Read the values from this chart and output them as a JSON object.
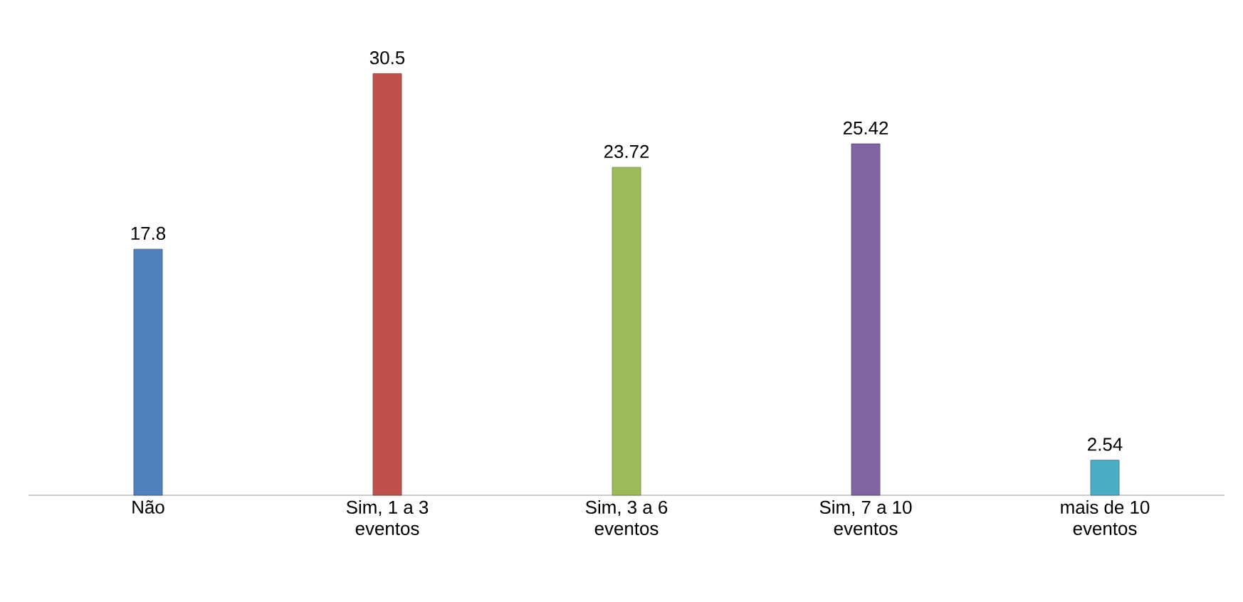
{
  "chart_data": {
    "type": "bar",
    "categories": [
      "Não",
      "Sim, 1 a 3 eventos",
      "Sim, 3 a 6 eventos",
      "Sim, 7 a 10 eventos",
      "mais de 10 eventos"
    ],
    "values": [
      17.8,
      30.5,
      23.72,
      25.42,
      2.54
    ],
    "colors": [
      "#4f81bd",
      "#c0504d",
      "#9bbb59",
      "#8064a2",
      "#4bacc6"
    ],
    "data_labels": true
  }
}
